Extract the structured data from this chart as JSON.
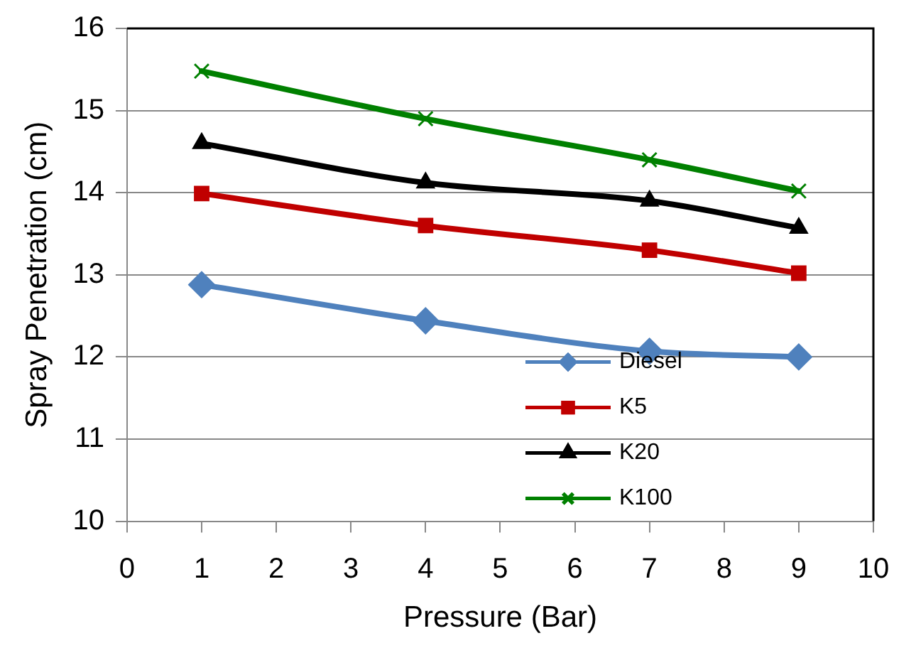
{
  "chart_data": {
    "type": "line",
    "xlabel": "Pressure (Bar)",
    "ylabel": "Spray Penetration (cm)",
    "x": [
      1,
      4,
      7,
      9
    ],
    "series": [
      {
        "name": "Diesel",
        "color": "#4f81bd",
        "marker": "diamond",
        "values": [
          12.88,
          12.44,
          12.07,
          12.0
        ]
      },
      {
        "name": "K5",
        "color": "#c00000",
        "marker": "square",
        "values": [
          13.99,
          13.6,
          13.3,
          13.02
        ]
      },
      {
        "name": "K20",
        "color": "#000000",
        "marker": "triangle",
        "values": [
          14.6,
          14.12,
          13.9,
          13.57
        ]
      },
      {
        "name": "K100",
        "color": "#008000",
        "marker": "cross",
        "values": [
          15.48,
          14.9,
          14.4,
          14.02
        ]
      }
    ],
    "xlim": [
      0,
      10
    ],
    "xticks": [
      0,
      1,
      2,
      3,
      4,
      5,
      6,
      7,
      8,
      9,
      10
    ],
    "ylim": [
      10,
      16
    ],
    "yticks": [
      10,
      11,
      12,
      13,
      14,
      15,
      16
    ],
    "grid": "y",
    "legend": "bottom right",
    "line_style": "solid"
  }
}
